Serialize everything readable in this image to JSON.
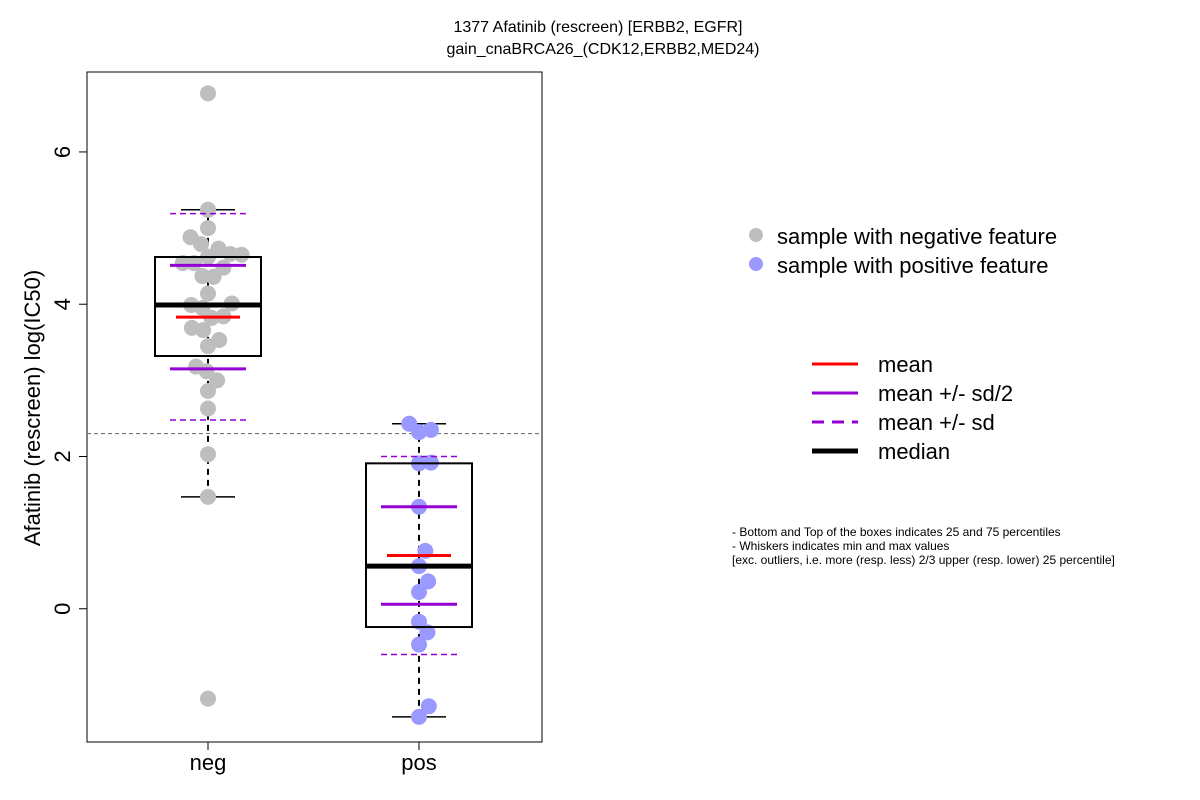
{
  "chart_data": {
    "type": "boxplot",
    "title_line1": "1377 Afatinib (rescreen) [ERBB2, EGFR]",
    "title_line2": "gain_cnaBRCA26_(CDK12,ERBB2,MED24)",
    "ylabel": "Afatinib (rescreen) log(IC50)",
    "categories": [
      "neg",
      "pos"
    ],
    "ylim": [
      -1.75,
      7.05
    ],
    "yticks": [
      0,
      2,
      4,
      6
    ],
    "threshold": 2.3,
    "groups": [
      {
        "name": "neg",
        "color": "#bebebe",
        "q1": 3.32,
        "median": 3.99,
        "q3": 4.62,
        "whisker_low": 1.47,
        "whisker_high": 5.24,
        "mean": 3.83,
        "mean_minus_halfsd": 3.15,
        "mean_plus_halfsd": 4.51,
        "mean_minus_sd": 2.48,
        "mean_plus_sd": 5.19,
        "points": [
          {
            "x": 0.0,
            "y": 6.77
          },
          {
            "x": 0.0,
            "y": 5.24
          },
          {
            "x": 0.0,
            "y": 5.0
          },
          {
            "x": -0.25,
            "y": 4.88
          },
          {
            "x": -0.1,
            "y": 4.79
          },
          {
            "x": 0.15,
            "y": 4.73
          },
          {
            "x": 0.32,
            "y": 4.66
          },
          {
            "x": 0.48,
            "y": 4.65
          },
          {
            "x": 0.0,
            "y": 4.62
          },
          {
            "x": -0.36,
            "y": 4.54
          },
          {
            "x": -0.2,
            "y": 4.54
          },
          {
            "x": 0.22,
            "y": 4.48
          },
          {
            "x": -0.08,
            "y": 4.37
          },
          {
            "x": 0.08,
            "y": 4.36
          },
          {
            "x": 0.0,
            "y": 4.14
          },
          {
            "x": -0.24,
            "y": 3.99
          },
          {
            "x": -0.08,
            "y": 3.95
          },
          {
            "x": 0.34,
            "y": 4.01
          },
          {
            "x": 0.05,
            "y": 3.82
          },
          {
            "x": 0.22,
            "y": 3.84
          },
          {
            "x": -0.23,
            "y": 3.69
          },
          {
            "x": -0.07,
            "y": 3.66
          },
          {
            "x": 0.16,
            "y": 3.53
          },
          {
            "x": 0.0,
            "y": 3.45
          },
          {
            "x": -0.17,
            "y": 3.18
          },
          {
            "x": -0.02,
            "y": 3.12
          },
          {
            "x": 0.13,
            "y": 3.0
          },
          {
            "x": 0.0,
            "y": 2.86
          },
          {
            "x": 0.0,
            "y": 2.63
          },
          {
            "x": 0.0,
            "y": 2.03
          },
          {
            "x": 0.0,
            "y": 1.47
          },
          {
            "x": 0.0,
            "y": -1.18
          }
        ]
      },
      {
        "name": "pos",
        "color": "#9999ff",
        "q1": -0.24,
        "median": 0.56,
        "q3": 1.91,
        "whisker_low": -1.42,
        "whisker_high": 2.43,
        "mean": 0.7,
        "mean_minus_halfsd": 0.06,
        "mean_plus_halfsd": 1.34,
        "mean_minus_sd": -0.6,
        "mean_plus_sd": 2.0,
        "points": [
          {
            "x": -0.14,
            "y": 2.43
          },
          {
            "x": 0.0,
            "y": 2.32
          },
          {
            "x": 0.17,
            "y": 2.35
          },
          {
            "x": 0.0,
            "y": 1.91
          },
          {
            "x": 0.17,
            "y": 1.92
          },
          {
            "x": 0.0,
            "y": 1.34
          },
          {
            "x": 0.09,
            "y": 0.76
          },
          {
            "x": 0.0,
            "y": 0.56
          },
          {
            "x": 0.13,
            "y": 0.36
          },
          {
            "x": 0.0,
            "y": 0.22
          },
          {
            "x": 0.0,
            "y": -0.17
          },
          {
            "x": 0.12,
            "y": -0.31
          },
          {
            "x": 0.0,
            "y": -0.47
          },
          {
            "x": 0.14,
            "y": -1.28
          },
          {
            "x": 0.0,
            "y": -1.42
          }
        ]
      }
    ],
    "legend_points": [
      {
        "label": "sample with negative feature",
        "color": "#bebebe"
      },
      {
        "label": "sample with positive feature",
        "color": "#9999ff"
      }
    ],
    "legend_lines": [
      {
        "label": "mean",
        "color": "#ff0000",
        "style": "solid"
      },
      {
        "label": "mean +/- sd/2",
        "color": "#9400d3",
        "style": "solid"
      },
      {
        "label": "mean +/- sd",
        "color": "#9400d3",
        "style": "dashed"
      },
      {
        "label": "median",
        "color": "#000000",
        "style": "solid-thick"
      }
    ],
    "notes": [
      "- Bottom and Top of the boxes indicates 25 and 75 percentiles",
      "- Whiskers indicates min and max values",
      "[exc. outliers, i.e. more (resp. less) 2/3 upper (resp. lower) 25 percentile]"
    ]
  }
}
